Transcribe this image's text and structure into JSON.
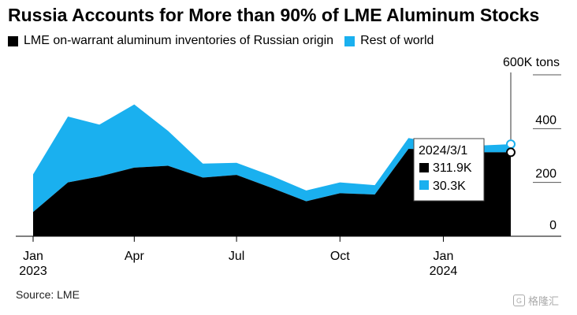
{
  "title": "Russia Accounts for More than 90% of LME Aluminum Stocks",
  "legend": [
    {
      "label": "LME on-warrant aluminum inventories of Russian origin",
      "color": "#000000"
    },
    {
      "label": "Rest of world",
      "color": "#1ab0ef"
    }
  ],
  "source": "Source: LME",
  "watermark": "格隆汇",
  "tooltip": {
    "date": "2024/3/1",
    "russia": "311.9K",
    "rest": "30.3K"
  },
  "chart_data": {
    "type": "area",
    "stacked": true,
    "title": "Russia Accounts for More than 90% of LME Aluminum Stocks",
    "x": [
      "2023-01-01",
      "2023-02-01",
      "2023-03-01",
      "2023-04-01",
      "2023-05-01",
      "2023-06-01",
      "2023-07-01",
      "2023-08-01",
      "2023-09-01",
      "2023-10-01",
      "2023-11-01",
      "2023-12-01",
      "2024-01-01",
      "2024-02-01",
      "2024-03-01"
    ],
    "series": [
      {
        "name": "LME on-warrant aluminum inventories of Russian origin",
        "color": "#000000",
        "values": [
          90,
          200,
          222,
          255,
          262,
          218,
          228,
          180,
          130,
          160,
          155,
          325,
          320,
          312,
          311.9
        ]
      },
      {
        "name": "Rest of world",
        "color": "#1ab0ef",
        "values": [
          140,
          245,
          193,
          235,
          130,
          52,
          45,
          45,
          40,
          40,
          35,
          40,
          20,
          25,
          30.3
        ]
      }
    ],
    "ylim": [
      0,
      600
    ],
    "y_unit": "600K tons",
    "yticks": [
      0,
      200,
      400
    ],
    "xticks": [
      {
        "label": "Jan",
        "sub": "2023",
        "date": "2023-01-01"
      },
      {
        "label": "Apr",
        "sub": "",
        "date": "2023-04-01"
      },
      {
        "label": "Jul",
        "sub": "",
        "date": "2023-07-01"
      },
      {
        "label": "Oct",
        "sub": "",
        "date": "2023-10-01"
      },
      {
        "label": "Jan",
        "sub": "2024",
        "date": "2024-01-01"
      }
    ],
    "y_axis_side": "right",
    "highlight_x": "2024-03-01"
  }
}
